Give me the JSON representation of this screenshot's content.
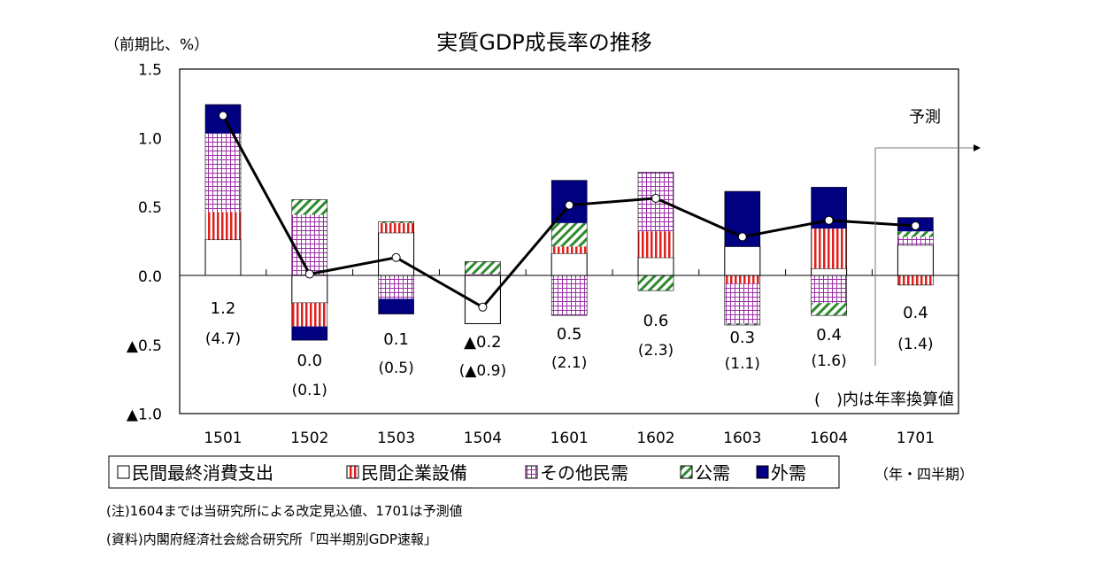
{
  "chart_data": {
    "type": "bar",
    "stacked": true,
    "title": "実質GDP成長率の推移",
    "ylabel": "（前期比、%）",
    "xlabel": "（年・四半期）",
    "ylim": [
      -1.0,
      1.5
    ],
    "yticks": [
      1.5,
      1.0,
      0.5,
      0.0,
      -0.5,
      -1.0
    ],
    "ytick_labels": [
      "1.5",
      "1.0",
      "0.5",
      "0.0",
      "▲0.5",
      "▲1.0"
    ],
    "categories": [
      "1501",
      "1502",
      "1503",
      "1504",
      "1601",
      "1602",
      "1603",
      "1604",
      "1701"
    ],
    "series": [
      {
        "name": "民間最終消費支出",
        "color": "#ffffff",
        "values": [
          0.26,
          -0.2,
          0.31,
          -0.35,
          0.16,
          0.13,
          0.21,
          0.05,
          0.22
        ]
      },
      {
        "name": "民間企業設備",
        "color": "#e0201c",
        "values": [
          0.2,
          -0.17,
          0.07,
          0.0,
          0.05,
          0.19,
          -0.06,
          0.29,
          -0.07
        ]
      },
      {
        "name": "その他民需",
        "color": "#9b2fa6",
        "values": [
          0.57,
          0.44,
          -0.17,
          0.01,
          -0.29,
          0.43,
          -0.29,
          -0.2,
          0.06
        ]
      },
      {
        "name": "公需",
        "color": "#2e8b2e",
        "values": [
          0.0,
          0.11,
          0.01,
          0.09,
          0.17,
          -0.11,
          -0.01,
          -0.09,
          0.04
        ]
      },
      {
        "name": "外需",
        "color": "#000080",
        "values": [
          0.21,
          -0.1,
          -0.11,
          0.0,
          0.31,
          0.0,
          0.4,
          0.3,
          0.1
        ]
      }
    ],
    "line": {
      "values": [
        1.16,
        0.01,
        0.13,
        -0.23,
        0.51,
        0.56,
        0.28,
        0.4,
        0.36
      ]
    },
    "data_labels": [
      "1.2",
      "0.0",
      "0.1",
      "▲0.2",
      "0.5",
      "0.6",
      "0.3",
      "0.4",
      "0.4"
    ],
    "annual_labels": [
      "(4.7)",
      "(0.1)",
      "(0.5)",
      "(▲0.9)",
      "(2.1)",
      "(2.3)",
      "(1.1)",
      "(1.6)",
      "(1.4)"
    ],
    "annual_note": "(　)内は年率換算値",
    "forecast_label": "予測",
    "forecast_from": "1701",
    "legend_position": "bottom",
    "grid": false
  },
  "notes": [
    "(注)1604までは当研究所による改定見込値、1701は予測値",
    "(資料)内閣府経済社会総合研究所「四半期別GDP速報」"
  ]
}
